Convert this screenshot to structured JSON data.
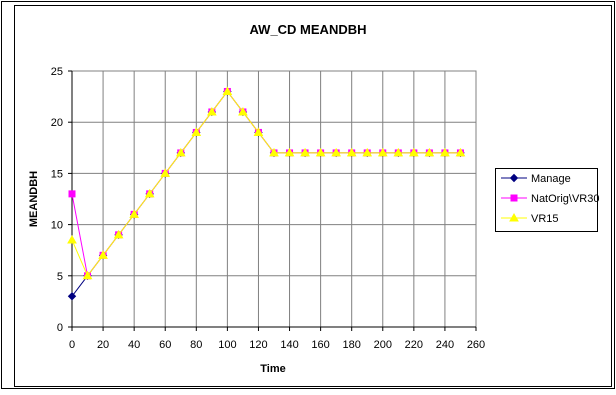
{
  "chart_data": {
    "type": "line",
    "title": "AW_CD MEANDBH",
    "xlabel": "Time",
    "ylabel": "MEANDBH",
    "xlim": [
      0,
      260
    ],
    "ylim": [
      0,
      25
    ],
    "x_ticks": [
      0,
      20,
      40,
      60,
      80,
      100,
      120,
      140,
      160,
      180,
      200,
      220,
      240,
      260
    ],
    "y_ticks": [
      0,
      5,
      10,
      15,
      20,
      25
    ],
    "grid": true,
    "legend_position": "right",
    "series": [
      {
        "name": "Manage",
        "color": "#000080",
        "marker": "diamond",
        "x": [
          0,
          10,
          20,
          30,
          40,
          50,
          60,
          70,
          80,
          90,
          100,
          110,
          120,
          130,
          140,
          150,
          160,
          170,
          180,
          190,
          200,
          210,
          220,
          230,
          240,
          250
        ],
        "values": [
          3,
          5,
          7,
          9,
          11,
          13,
          15,
          17,
          19,
          21,
          23,
          21,
          19,
          17,
          17,
          17,
          17,
          17,
          17,
          17,
          17,
          17,
          17,
          17,
          17,
          17
        ]
      },
      {
        "name": "NatOrig\\VR30",
        "color": "#ff00ff",
        "marker": "square",
        "x": [
          0,
          10,
          20,
          30,
          40,
          50,
          60,
          70,
          80,
          90,
          100,
          110,
          120,
          130,
          140,
          150,
          160,
          170,
          180,
          190,
          200,
          210,
          220,
          230,
          240,
          250
        ],
        "values": [
          13,
          5,
          7,
          9,
          11,
          13,
          15,
          17,
          19,
          21,
          23,
          21,
          19,
          17,
          17,
          17,
          17,
          17,
          17,
          17,
          17,
          17,
          17,
          17,
          17,
          17
        ]
      },
      {
        "name": "VR15",
        "color": "#ffff00",
        "marker": "triangle",
        "x": [
          0,
          10,
          20,
          30,
          40,
          50,
          60,
          70,
          80,
          90,
          100,
          110,
          120,
          130,
          140,
          150,
          160,
          170,
          180,
          190,
          200,
          210,
          220,
          230,
          240,
          250
        ],
        "values": [
          8.5,
          5,
          7,
          9,
          11,
          13,
          15,
          17,
          19,
          21,
          23,
          21,
          19,
          17,
          17,
          17,
          17,
          17,
          17,
          17,
          17,
          17,
          17,
          17,
          17,
          17
        ]
      }
    ]
  }
}
